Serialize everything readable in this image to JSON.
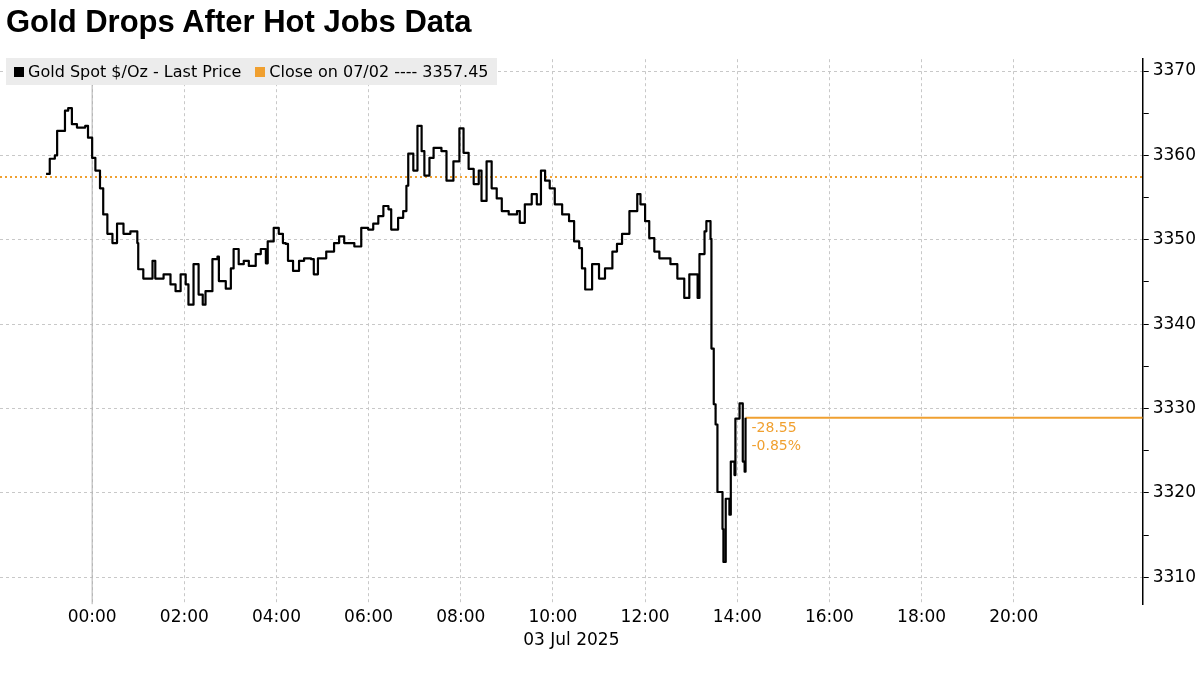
{
  "chart_data": {
    "type": "step",
    "title": "Gold Drops After Hot Jobs Data",
    "xlabel": "03 Jul 2025",
    "xlim": [
      -2,
      22.8
    ],
    "xticks": [
      {
        "value": 0,
        "label": "00:00"
      },
      {
        "value": 2,
        "label": "02:00"
      },
      {
        "value": 4,
        "label": "04:00"
      },
      {
        "value": 6,
        "label": "06:00"
      },
      {
        "value": 8,
        "label": "08:00"
      },
      {
        "value": 10,
        "label": "10:00"
      },
      {
        "value": 12,
        "label": "12:00"
      },
      {
        "value": 14,
        "label": "14:00"
      },
      {
        "value": 16,
        "label": "16:00"
      },
      {
        "value": 18,
        "label": "18:00"
      },
      {
        "value": 20,
        "label": "20:00"
      }
    ],
    "ylim": [
      3306.8,
      3371.4
    ],
    "yticks": [
      3310,
      {
        "value": 3315,
        "label": null
      },
      3320,
      {
        "value": 3325,
        "label": null
      },
      3330,
      {
        "value": 3335,
        "label": null
      },
      3340,
      {
        "value": 3345,
        "label": null
      },
      3350,
      {
        "value": 3355,
        "label": null
      },
      3360,
      {
        "value": 3365,
        "label": null
      },
      3370
    ],
    "grid": true,
    "legend": "top left",
    "marker": "none",
    "series": [
      {
        "name": "Gold Spot $/Oz - Last Price",
        "color": "#000000",
        "x": [
          -1.0,
          -0.92,
          -0.81,
          -0.76,
          -0.59,
          -0.52,
          -0.44,
          -0.33,
          -0.15,
          -0.09,
          0.0,
          0.07,
          0.17,
          0.24,
          0.33,
          0.44,
          0.54,
          0.68,
          0.83,
          0.98,
          1.0,
          1.11,
          1.31,
          1.37,
          1.55,
          1.7,
          1.81,
          1.92,
          2.03,
          2.09,
          2.2,
          2.31,
          2.4,
          2.46,
          2.61,
          2.72,
          2.75,
          2.9,
          3.01,
          3.07,
          3.18,
          3.29,
          3.4,
          3.55,
          3.66,
          3.77,
          3.81,
          3.94,
          4.05,
          4.14,
          4.2,
          4.25,
          4.36,
          4.49,
          4.6,
          4.75,
          4.81,
          4.9,
          5.08,
          5.25,
          5.36,
          5.47,
          5.69,
          5.84,
          5.99,
          6.1,
          6.21,
          6.32,
          6.43,
          6.49,
          6.64,
          6.75,
          6.82,
          6.86,
          6.97,
          7.06,
          7.15,
          7.21,
          7.32,
          7.41,
          7.58,
          7.69,
          7.84,
          7.97,
          8.06,
          8.17,
          8.28,
          8.39,
          8.45,
          8.56,
          8.67,
          8.78,
          8.89,
          9.04,
          9.22,
          9.28,
          9.39,
          9.54,
          9.65,
          9.74,
          9.83,
          9.93,
          10.04,
          10.2,
          10.35,
          10.46,
          10.57,
          10.63,
          10.7,
          10.85,
          11.0,
          11.13,
          11.29,
          11.39,
          11.5,
          11.66,
          11.83,
          11.9,
          12.0,
          12.09,
          12.2,
          12.31,
          12.44,
          12.55,
          12.7,
          12.85,
          12.96,
          13.14,
          13.18,
          13.29,
          13.33,
          13.42,
          13.44,
          13.49,
          13.53,
          13.57,
          13.68,
          13.7,
          13.75,
          13.83,
          13.86,
          13.94,
          13.96,
          14.05,
          14.12,
          14.16,
          14.18
        ],
        "values": [
          3357.8,
          3359.6,
          3360.0,
          3362.9,
          3365.3,
          3365.6,
          3363.7,
          3363.3,
          3363.5,
          3362.1,
          3359.7,
          3358.2,
          3356.1,
          3353.0,
          3350.7,
          3349.6,
          3351.9,
          3350.7,
          3351.0,
          3349.6,
          3346.5,
          3345.4,
          3347.5,
          3345.4,
          3345.9,
          3344.7,
          3343.9,
          3345.9,
          3344.7,
          3342.3,
          3347.1,
          3343.5,
          3342.3,
          3343.9,
          3347.7,
          3348.0,
          3345.1,
          3344.2,
          3346.6,
          3348.9,
          3347.1,
          3347.5,
          3346.9,
          3348.3,
          3348.9,
          3347.2,
          3349.8,
          3351.4,
          3350.7,
          3349.6,
          3349.5,
          3347.5,
          3346.3,
          3347.5,
          3347.8,
          3347.7,
          3345.9,
          3347.8,
          3348.6,
          3349.6,
          3350.4,
          3349.6,
          3349.2,
          3351.4,
          3351.2,
          3351.9,
          3352.8,
          3354.0,
          3353.6,
          3351.2,
          3352.6,
          3353.4,
          3356.4,
          3360.2,
          3358.2,
          3363.5,
          3360.5,
          3357.6,
          3359.7,
          3360.9,
          3360.5,
          3357.0,
          3359.3,
          3363.2,
          3360.3,
          3358.4,
          3356.6,
          3358.2,
          3354.6,
          3359.3,
          3356.1,
          3354.9,
          3353.4,
          3353.0,
          3353.4,
          3352.0,
          3354.2,
          3355.4,
          3354.2,
          3358.2,
          3357.0,
          3356.1,
          3354.2,
          3353.0,
          3352.2,
          3349.8,
          3349.0,
          3346.6,
          3344.1,
          3347.1,
          3345.4,
          3346.6,
          3348.6,
          3349.5,
          3350.7,
          3353.4,
          3355.4,
          3354.2,
          3352.2,
          3350.2,
          3348.6,
          3347.8,
          3347.8,
          3347.1,
          3345.4,
          3343.1,
          3345.9,
          3343.1,
          3348.3,
          3351.0,
          3352.2,
          3350.1,
          3337.1,
          3330.5,
          3328.1,
          3320.1,
          3315.7,
          3311.8,
          3319.3,
          3317.4,
          3323.7,
          3322.1,
          3328.8,
          3330.6,
          3323.7,
          3322.5,
          3328.9
        ]
      },
      {
        "color": "#f0a030",
        "x": [
          14.18,
          22.8
        ],
        "values": [
          3328.9,
          3328.9
        ]
      }
    ],
    "ref_lines": [
      {
        "axis": "y",
        "value": 3357.45,
        "label": "Close on 07/02 ---- 3357.45",
        "color": "#f0a030",
        "line_style": "dotted"
      },
      {
        "axis": "x",
        "value": 0,
        "color": "#b0b0b0",
        "line_style": "solid"
      }
    ],
    "annotations": [
      {
        "text": "-28.55",
        "x": 14.18,
        "y": 3328.9
      },
      {
        "text": "-0.85%",
        "x": 14.18,
        "y": 3328.9
      }
    ]
  }
}
